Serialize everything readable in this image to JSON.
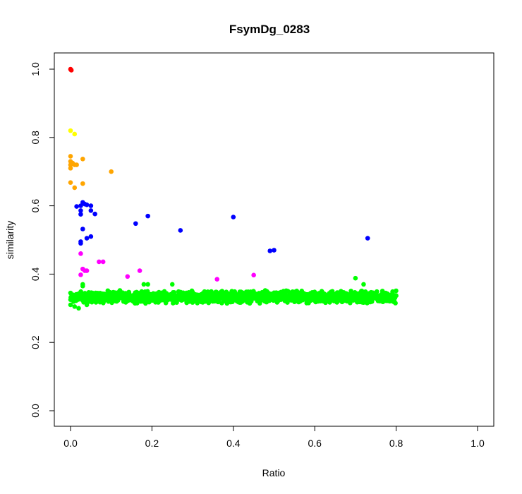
{
  "chart_data": {
    "type": "scatter",
    "title": "FsymDg_0283",
    "xlabel": "Ratio",
    "ylabel": "similarity",
    "xlim": [
      0,
      1
    ],
    "ylim": [
      0,
      1
    ],
    "x_ticks": [
      "0.0",
      "0.2",
      "0.4",
      "0.6",
      "0.8",
      "1.0"
    ],
    "y_ticks": [
      "0.0",
      "0.2",
      "0.4",
      "0.6",
      "0.8",
      "1.0"
    ],
    "grid": false,
    "legend": "none",
    "band": {
      "color": "#00ff00",
      "x_range": [
        0.0,
        0.8
      ],
      "y_center": 0.333,
      "y_spread": 0.02
    },
    "series": [
      {
        "color": "#ff0000",
        "points": [
          [
            0.0,
            1.0
          ],
          [
            0.001,
            0.998
          ],
          [
            0.002,
            0.997
          ]
        ]
      },
      {
        "color": "#ffff00",
        "points": [
          [
            0.0,
            0.82
          ],
          [
            0.01,
            0.81
          ]
        ]
      },
      {
        "color": "#ffa500",
        "points": [
          [
            0.0,
            0.745
          ],
          [
            0.0,
            0.73
          ],
          [
            0.0,
            0.72
          ],
          [
            0.0,
            0.71
          ],
          [
            0.005,
            0.725
          ],
          [
            0.01,
            0.72
          ],
          [
            0.015,
            0.72
          ],
          [
            0.03,
            0.737
          ],
          [
            0.0,
            0.668
          ],
          [
            0.01,
            0.653
          ],
          [
            0.03,
            0.665
          ],
          [
            0.1,
            0.7
          ]
        ]
      },
      {
        "color": "#0000ff",
        "points": [
          [
            0.015,
            0.598
          ],
          [
            0.025,
            0.6
          ],
          [
            0.03,
            0.61
          ],
          [
            0.035,
            0.605
          ],
          [
            0.04,
            0.603
          ],
          [
            0.05,
            0.6
          ],
          [
            0.05,
            0.586
          ],
          [
            0.06,
            0.576
          ],
          [
            0.025,
            0.586
          ],
          [
            0.025,
            0.575
          ],
          [
            0.03,
            0.532
          ],
          [
            0.04,
            0.505
          ],
          [
            0.05,
            0.51
          ],
          [
            0.025,
            0.495
          ],
          [
            0.025,
            0.49
          ],
          [
            0.16,
            0.548
          ],
          [
            0.19,
            0.57
          ],
          [
            0.27,
            0.528
          ],
          [
            0.4,
            0.567
          ],
          [
            0.49,
            0.468
          ],
          [
            0.5,
            0.47
          ],
          [
            0.73,
            0.505
          ]
        ]
      },
      {
        "color": "#ff00ff",
        "points": [
          [
            0.025,
            0.46
          ],
          [
            0.07,
            0.436
          ],
          [
            0.08,
            0.436
          ],
          [
            0.03,
            0.415
          ],
          [
            0.04,
            0.41
          ],
          [
            0.035,
            0.41
          ],
          [
            0.025,
            0.398
          ],
          [
            0.14,
            0.393
          ],
          [
            0.17,
            0.41
          ],
          [
            0.36,
            0.385
          ],
          [
            0.45,
            0.397
          ]
        ]
      },
      {
        "color": "#00ff00",
        "points": [
          [
            0.0,
            0.325
          ],
          [
            0.0,
            0.31
          ],
          [
            0.01,
            0.305
          ],
          [
            0.02,
            0.3
          ],
          [
            0.025,
            0.345
          ],
          [
            0.03,
            0.365
          ],
          [
            0.03,
            0.37
          ],
          [
            0.035,
            0.32
          ],
          [
            0.04,
            0.31
          ],
          [
            0.18,
            0.37
          ],
          [
            0.19,
            0.37
          ],
          [
            0.25,
            0.37
          ],
          [
            0.7,
            0.388
          ],
          [
            0.72,
            0.37
          ]
        ]
      }
    ]
  }
}
